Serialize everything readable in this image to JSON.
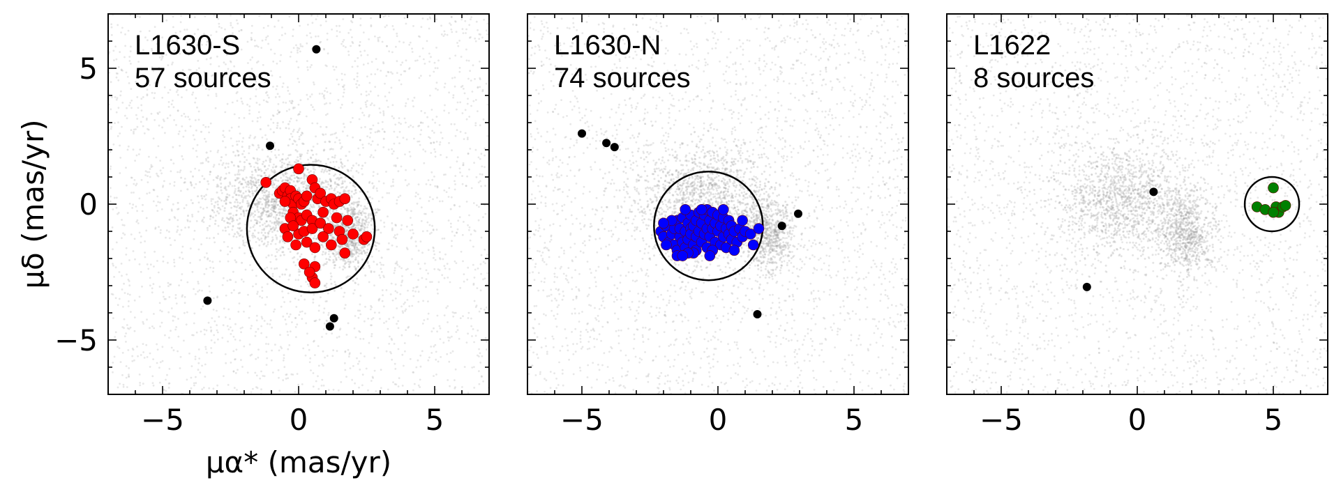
{
  "chart_data": [
    {
      "type": "scatter",
      "title": "L1630-S",
      "subtitle": "57 sources",
      "xlabel": "μα* (mas/yr)",
      "ylabel": "μδ (mas/yr)",
      "xlim": [
        -7,
        7
      ],
      "ylim": [
        -7,
        7
      ],
      "xticks": [
        -5,
        0,
        5
      ],
      "yticks": [
        -5,
        0,
        5
      ],
      "grid": false,
      "background_field": {
        "color": "#bbbbbb",
        "clumps": [
          {
            "cx": -0.5,
            "cy": 0.2,
            "sx": 1.3,
            "sy": 1.0
          },
          {
            "cx": 1.8,
            "cy": -1.1,
            "sx": 0.5,
            "sy": 0.7
          }
        ]
      },
      "circle": {
        "cx": 0.45,
        "cy": -0.9,
        "r": 2.35
      },
      "series": [
        {
          "color": "#ff0000",
          "points": [
            [
              -1.2,
              0.8
            ],
            [
              -0.7,
              0.4
            ],
            [
              -0.6,
              0.5
            ],
            [
              -0.5,
              0.6
            ],
            [
              -0.4,
              0.3
            ],
            [
              -0.3,
              0.5
            ],
            [
              -0.3,
              0.2
            ],
            [
              -0.2,
              0.0
            ],
            [
              -0.1,
              0.3
            ],
            [
              0.0,
              1.3
            ],
            [
              0.0,
              0.2
            ],
            [
              0.1,
              0.0
            ],
            [
              0.2,
              0.1
            ],
            [
              0.3,
              0.3
            ],
            [
              0.5,
              0.9
            ],
            [
              0.6,
              0.6
            ],
            [
              0.7,
              0.2
            ],
            [
              0.8,
              0.4
            ],
            [
              1.0,
              0.1
            ],
            [
              1.2,
              0.2
            ],
            [
              1.3,
              0.0
            ],
            [
              1.5,
              0.1
            ],
            [
              1.7,
              0.2
            ],
            [
              -0.2,
              -0.3
            ],
            [
              0.0,
              -0.5
            ],
            [
              0.1,
              -0.6
            ],
            [
              -0.3,
              -0.5
            ],
            [
              0.3,
              -0.4
            ],
            [
              0.5,
              -0.6
            ],
            [
              -0.5,
              -0.9
            ],
            [
              -0.4,
              -1.2
            ],
            [
              0.0,
              -1.1
            ],
            [
              0.2,
              -1.0
            ],
            [
              0.5,
              -0.9
            ],
            [
              0.8,
              -0.7
            ],
            [
              1.1,
              -0.9
            ],
            [
              0.9,
              -1.2
            ],
            [
              0.3,
              -1.4
            ],
            [
              -0.1,
              -1.5
            ],
            [
              1.5,
              -1.0
            ],
            [
              1.6,
              -1.3
            ],
            [
              1.8,
              -0.6
            ],
            [
              2.0,
              -1.1
            ],
            [
              1.7,
              -1.8
            ],
            [
              2.4,
              -1.3
            ],
            [
              2.5,
              -1.2
            ],
            [
              1.2,
              -1.5
            ],
            [
              0.6,
              -1.6
            ],
            [
              -0.2,
              -0.8
            ],
            [
              0.2,
              -2.2
            ],
            [
              0.6,
              -2.3
            ],
            [
              0.5,
              -2.7
            ],
            [
              0.6,
              -2.9
            ],
            [
              0.4,
              -2.5
            ],
            [
              0.9,
              -0.3
            ],
            [
              -0.5,
              0.1
            ],
            [
              1.4,
              -0.5
            ]
          ]
        },
        {
          "color": "#000000",
          "points": [
            [
              0.65,
              5.7
            ],
            [
              -1.05,
              2.15
            ],
            [
              -3.35,
              -3.55
            ],
            [
              1.3,
              -4.2
            ],
            [
              1.15,
              -4.5
            ]
          ]
        }
      ]
    },
    {
      "type": "scatter",
      "title": "L1630-N",
      "subtitle": "74 sources",
      "xlabel": "",
      "ylabel": "",
      "xlim": [
        -7,
        7
      ],
      "ylim": [
        -7,
        7
      ],
      "xticks": [
        -5,
        0,
        5
      ],
      "yticks": [
        -5,
        0,
        5
      ],
      "grid": false,
      "background_field": {
        "color": "#bbbbbb",
        "clumps": [
          {
            "cx": -0.5,
            "cy": 0.2,
            "sx": 1.3,
            "sy": 1.0
          },
          {
            "cx": 1.8,
            "cy": -1.1,
            "sx": 0.5,
            "sy": 0.7
          }
        ]
      },
      "circle": {
        "cx": -0.35,
        "cy": -0.8,
        "r": 2.0
      },
      "series": [
        {
          "color": "#0000ff",
          "points": [
            [
              -2.1,
              -1.0
            ],
            [
              -2.0,
              -1.2
            ],
            [
              -1.9,
              -0.8
            ],
            [
              -1.8,
              -1.4
            ],
            [
              -1.7,
              -1.1
            ],
            [
              -1.6,
              -0.9
            ],
            [
              -1.6,
              -1.5
            ],
            [
              -1.5,
              -1.7
            ],
            [
              -1.5,
              -0.6
            ],
            [
              -1.4,
              -1.2
            ],
            [
              -1.4,
              -0.9
            ],
            [
              -1.3,
              -1.4
            ],
            [
              -1.3,
              -0.5
            ],
            [
              -1.2,
              -1.0
            ],
            [
              -1.2,
              -1.6
            ],
            [
              -1.1,
              -0.7
            ],
            [
              -1.1,
              -1.3
            ],
            [
              -1.0,
              -0.9
            ],
            [
              -1.0,
              -1.1
            ],
            [
              -1.0,
              -0.4
            ],
            [
              -0.9,
              -1.5
            ],
            [
              -0.9,
              -0.8
            ],
            [
              -0.8,
              -1.2
            ],
            [
              -0.8,
              -0.6
            ],
            [
              -0.8,
              -1.7
            ],
            [
              -0.7,
              -1.0
            ],
            [
              -0.7,
              -0.3
            ],
            [
              -0.6,
              -1.4
            ],
            [
              -0.6,
              -0.7
            ],
            [
              -0.5,
              -1.1
            ],
            [
              -0.5,
              -0.4
            ],
            [
              -0.4,
              -0.9
            ],
            [
              -0.4,
              -1.6
            ],
            [
              -0.4,
              -0.2
            ],
            [
              -0.3,
              -1.2
            ],
            [
              -0.3,
              -0.6
            ],
            [
              -0.2,
              -0.9
            ],
            [
              -0.2,
              -0.3
            ],
            [
              -0.1,
              -1.4
            ],
            [
              -0.1,
              -0.7
            ],
            [
              0.0,
              -1.0
            ],
            [
              0.0,
              -0.4
            ],
            [
              0.1,
              -0.8
            ],
            [
              0.1,
              -1.5
            ],
            [
              0.2,
              -0.5
            ],
            [
              0.2,
              -1.2
            ],
            [
              0.3,
              -0.9
            ],
            [
              0.3,
              -1.6
            ],
            [
              0.4,
              -1.1
            ],
            [
              0.4,
              -0.6
            ],
            [
              0.5,
              -1.3
            ],
            [
              0.5,
              -0.8
            ],
            [
              0.6,
              -1.0
            ],
            [
              0.7,
              -1.4
            ],
            [
              0.8,
              -0.9
            ],
            [
              0.9,
              -1.2
            ],
            [
              1.0,
              -1.0
            ],
            [
              1.2,
              -1.1
            ],
            [
              1.5,
              -0.9
            ],
            [
              -1.2,
              -0.2
            ],
            [
              -0.2,
              -1.7
            ],
            [
              -1.7,
              -0.6
            ],
            [
              -0.9,
              -1.8
            ],
            [
              0.6,
              -1.7
            ],
            [
              -1.5,
              -1.9
            ],
            [
              -1.9,
              -1.5
            ],
            [
              -0.6,
              -0.2
            ],
            [
              0.2,
              -0.2
            ],
            [
              -1.1,
              -1.8
            ],
            [
              0.9,
              -0.6
            ],
            [
              -0.3,
              -1.9
            ],
            [
              1.3,
              -1.5
            ],
            [
              -2.0,
              -0.7
            ],
            [
              -1.3,
              -1.9
            ]
          ]
        },
        {
          "color": "#000000",
          "points": [
            [
              -5.0,
              2.6
            ],
            [
              -4.1,
              2.25
            ],
            [
              -3.8,
              2.1
            ],
            [
              2.95,
              -0.35
            ],
            [
              2.35,
              -0.8
            ],
            [
              1.45,
              -4.05
            ]
          ]
        }
      ]
    },
    {
      "type": "scatter",
      "title": "L1622",
      "subtitle": "8 sources",
      "xlabel": "",
      "ylabel": "",
      "xlim": [
        -7,
        7
      ],
      "ylim": [
        -7,
        7
      ],
      "xticks": [
        -5,
        0,
        5
      ],
      "yticks": [
        -5,
        0,
        5
      ],
      "grid": false,
      "background_field": {
        "color": "#bbbbbb",
        "clumps": [
          {
            "cx": -0.5,
            "cy": 0.2,
            "sx": 1.3,
            "sy": 1.0
          },
          {
            "cx": 1.8,
            "cy": -1.1,
            "sx": 0.5,
            "sy": 0.7
          }
        ]
      },
      "circle": {
        "cx": 4.95,
        "cy": 0.0,
        "r": 1.0
      },
      "series": [
        {
          "color": "#008000",
          "points": [
            [
              4.4,
              -0.1
            ],
            [
              4.7,
              -0.2
            ],
            [
              5.0,
              0.6
            ],
            [
              5.1,
              -0.1
            ],
            [
              5.2,
              -0.3
            ],
            [
              5.35,
              -0.1
            ],
            [
              5.0,
              -0.3
            ],
            [
              5.45,
              -0.05
            ]
          ]
        },
        {
          "color": "#000000",
          "points": [
            [
              0.6,
              0.45
            ],
            [
              -1.85,
              -3.05
            ]
          ]
        }
      ]
    }
  ]
}
